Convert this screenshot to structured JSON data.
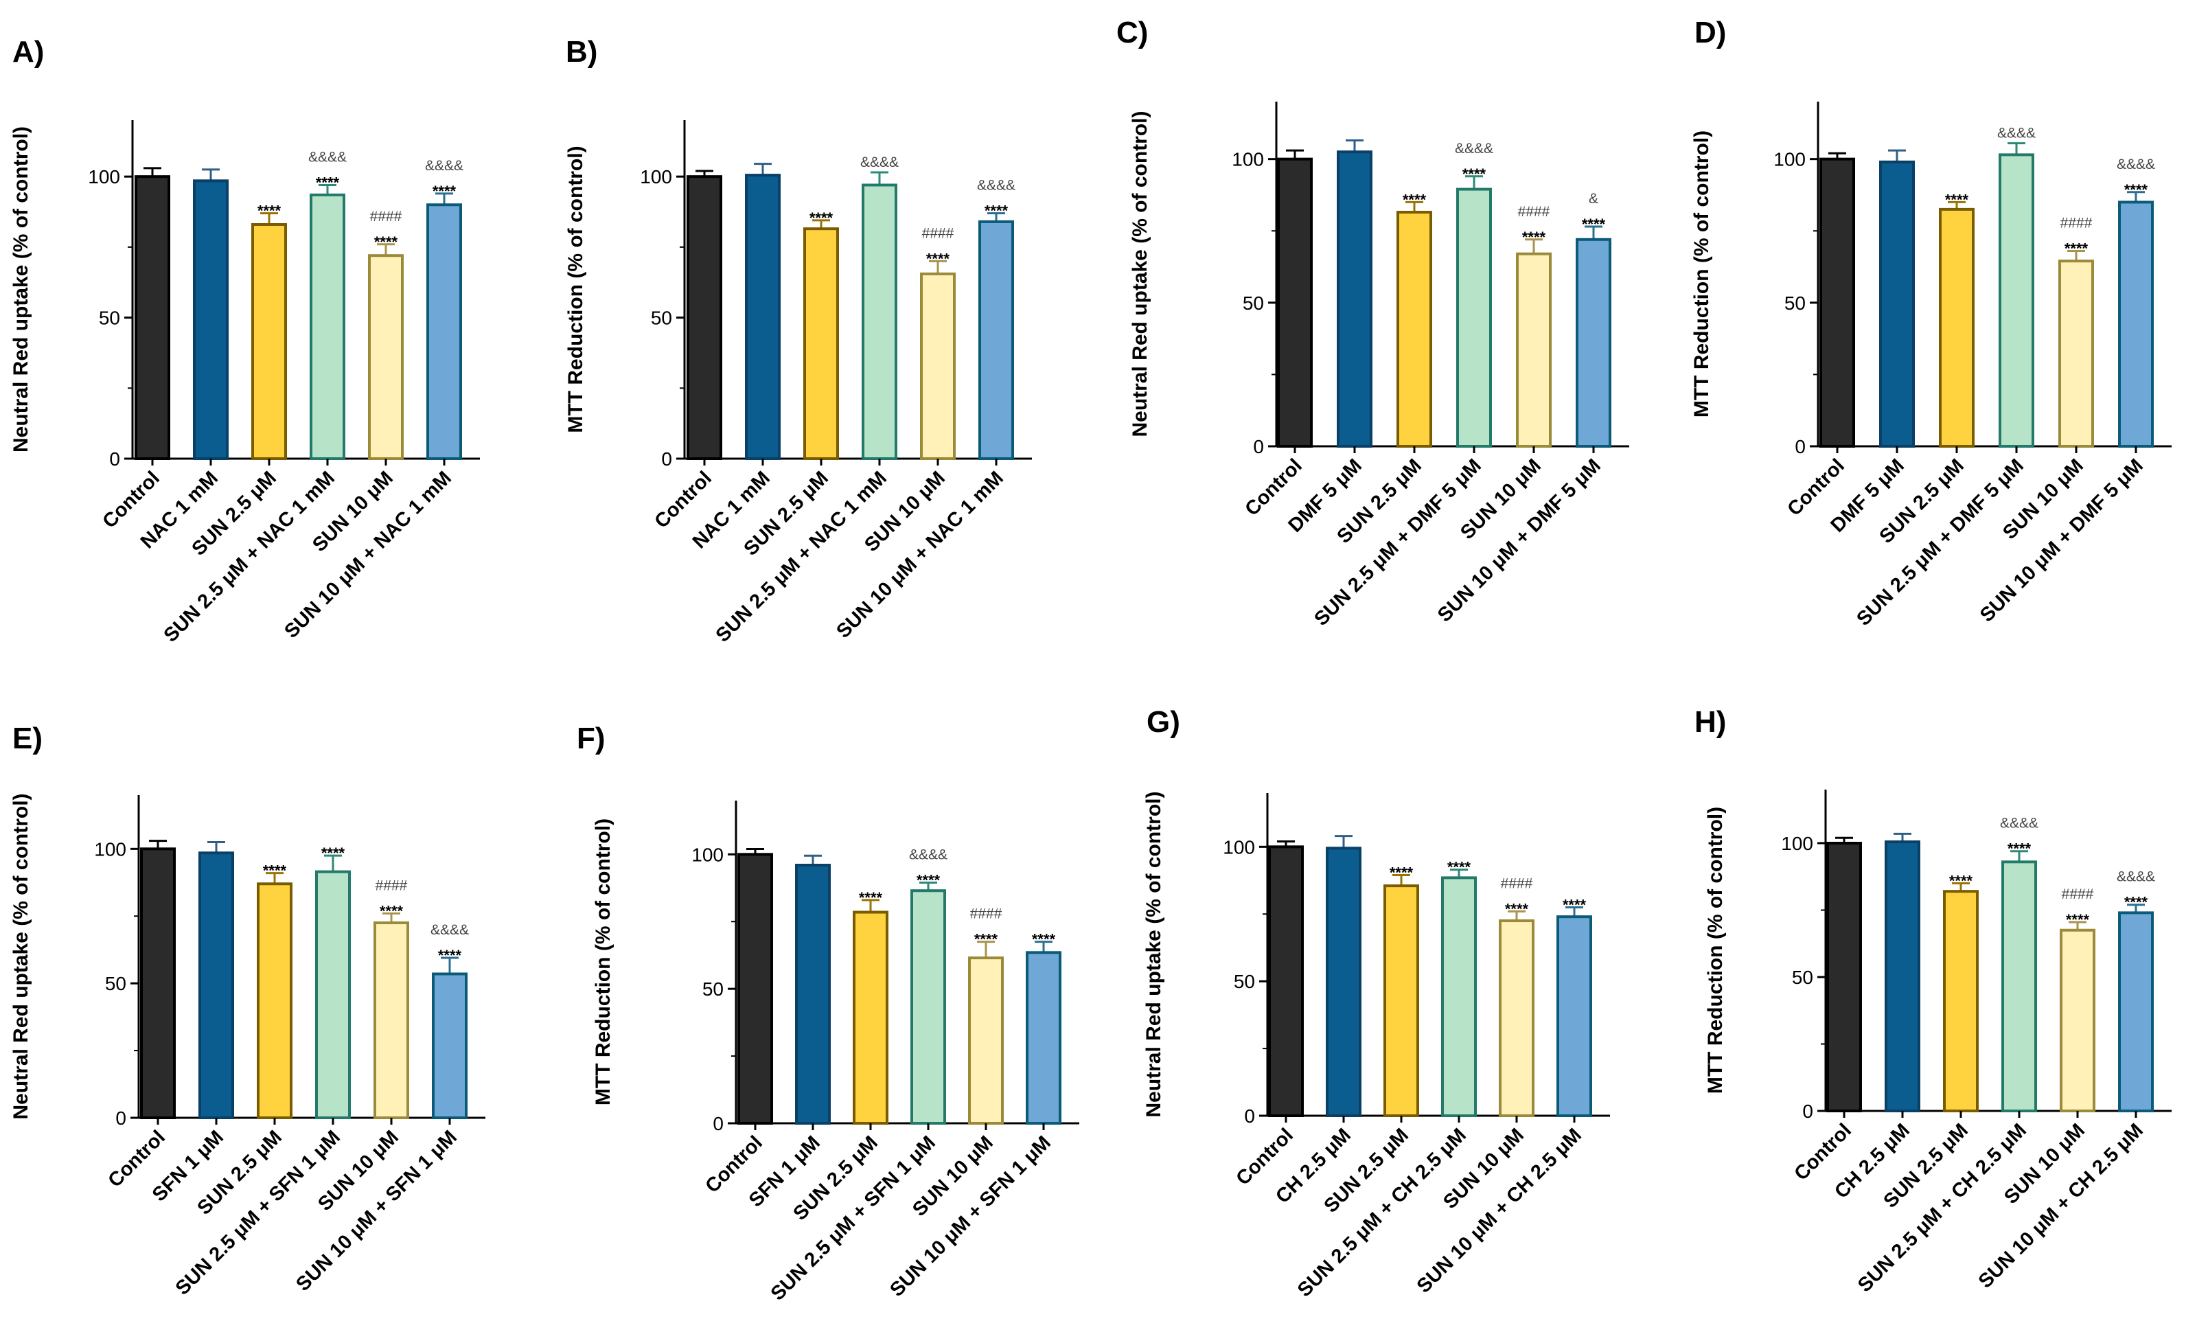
{
  "chart_data": [
    {
      "type": "bar",
      "panel": "A)",
      "title": "A)",
      "ylabel": "Neutral Red uptake (% of control)",
      "ylim": [
        0,
        120
      ],
      "yticks": [
        "0",
        "50",
        "100"
      ],
      "categories": [
        "Control",
        "NAC 1 mM",
        "SUN 2.5 μM",
        "SUN 2.5 μM + NAC 1 mM",
        "SUN 10 μM",
        "SUN 10 μM + NAC 1 mM"
      ],
      "values": [
        100,
        98.5,
        83,
        93.5,
        72,
        90
      ],
      "errors": [
        3,
        4,
        4,
        3.5,
        4,
        4
      ],
      "annotations": [
        [],
        [],
        [
          "****"
        ],
        [
          "&&&&",
          "****"
        ],
        [
          "####",
          "****"
        ],
        [
          "&&&&",
          "****"
        ]
      ]
    },
    {
      "type": "bar",
      "panel": "B)",
      "title": "B)",
      "ylabel": "MTT Reduction (% of control)",
      "ylim": [
        0,
        120
      ],
      "yticks": [
        "0",
        "50",
        "100"
      ],
      "categories": [
        "Control",
        "NAC 1 mM",
        "SUN 2.5 μM",
        "SUN 2.5 μM + NAC 1 mM",
        "SUN 10 μM",
        "SUN 10 μM + NAC 1 mM"
      ],
      "values": [
        100,
        100.5,
        81.5,
        97,
        65.5,
        84
      ],
      "errors": [
        2,
        4,
        3,
        4.5,
        4.5,
        3
      ],
      "annotations": [
        [],
        [],
        [
          "****"
        ],
        [
          "&&&&"
        ],
        [
          "####",
          "****"
        ],
        [
          "&&&&",
          "****"
        ]
      ]
    },
    {
      "type": "bar",
      "panel": "C)",
      "title": "C)",
      "ylabel": "Neutral Red uptake (% of control)",
      "ylim": [
        0,
        120
      ],
      "yticks": [
        "0",
        "50",
        "100"
      ],
      "categories": [
        "Control",
        "DMF 5 μM",
        "SUN 2.5 μM",
        "SUN 2.5 μM + DMF 5 μM",
        "SUN 10 μM",
        "SUN 10 μM + DMF 5 μM"
      ],
      "values": [
        100,
        102.5,
        81.5,
        89.5,
        67,
        72
      ],
      "errors": [
        3,
        4,
        3.5,
        4.5,
        5,
        4.5
      ],
      "annotations": [
        [],
        [],
        [
          "****"
        ],
        [
          "&&&&",
          "****"
        ],
        [
          "####",
          "****"
        ],
        [
          "&",
          "****"
        ]
      ]
    },
    {
      "type": "bar",
      "panel": "D)",
      "title": "D)",
      "ylabel": "MTT Reduction (% of control)",
      "ylim": [
        0,
        120
      ],
      "yticks": [
        "0",
        "50",
        "100"
      ],
      "categories": [
        "Control",
        "DMF 5 μM",
        "SUN 2.5 μM",
        "SUN 2.5 μM + DMF 5 μM",
        "SUN 10 μM",
        "SUN 10 μM + DMF 5 μM"
      ],
      "values": [
        100,
        99,
        82.5,
        101.5,
        64.5,
        85
      ],
      "errors": [
        2,
        4,
        2.5,
        4,
        3.5,
        3.5
      ],
      "annotations": [
        [],
        [],
        [
          "****"
        ],
        [
          "&&&&"
        ],
        [
          "####",
          "****"
        ],
        [
          "&&&&",
          "****"
        ]
      ]
    },
    {
      "type": "bar",
      "panel": "E)",
      "title": "E)",
      "ylabel": "Neutral Red uptake (% of control)",
      "ylim": [
        0,
        120
      ],
      "yticks": [
        "0",
        "50",
        "100"
      ],
      "categories": [
        "Control",
        "SFN 1 μM",
        "SUN 2.5 μM",
        "SUN 2.5 μM + SFN 1 μM",
        "SUN 10 μM",
        "SUN 10 μM + SFN 1 μM"
      ],
      "values": [
        100,
        98.5,
        87,
        91.5,
        72.5,
        53.5
      ],
      "errors": [
        3,
        4,
        4,
        6,
        3.5,
        6
      ],
      "annotations": [
        [],
        [],
        [
          "****"
        ],
        [
          "****"
        ],
        [
          "####",
          "****"
        ],
        [
          "&&&&",
          "****"
        ]
      ]
    },
    {
      "type": "bar",
      "panel": "F)",
      "title": "F)",
      "ylabel": "MTT Reduction (% of control)",
      "ylim": [
        0,
        120
      ],
      "yticks": [
        "0",
        "50",
        "100"
      ],
      "categories": [
        "Control",
        "SFN 1 μM",
        "SUN 2.5 μM",
        "SUN 2.5 μM + SFN 1 μM",
        "SUN 10 μM",
        "SUN 10 μM + SFN 1 μM"
      ],
      "values": [
        100,
        96,
        78.5,
        86.5,
        61.5,
        63.5
      ],
      "errors": [
        2,
        3.5,
        4.5,
        3,
        6,
        4
      ],
      "annotations": [
        [],
        [],
        [
          "****"
        ],
        [
          "&&&&",
          "****"
        ],
        [
          "####",
          "****"
        ],
        [
          "****"
        ]
      ]
    },
    {
      "type": "bar",
      "panel": "G)",
      "title": "G)",
      "ylabel": "Neutral Red uptake (% of control)",
      "ylim": [
        0,
        120
      ],
      "yticks": [
        "0",
        "50",
        "100"
      ],
      "categories": [
        "Control",
        "CH 2.5 μM",
        "SUN 2.5 μM",
        "SUN 2.5 μM + CH 2.5 μM",
        "SUN 10 μM",
        "SUN 10 μM + CH 2.5 μM"
      ],
      "values": [
        100,
        99.5,
        85.5,
        88.5,
        72.5,
        74
      ],
      "errors": [
        2,
        4.5,
        4,
        3,
        3.5,
        3.5
      ],
      "annotations": [
        [],
        [],
        [
          "****"
        ],
        [
          "****"
        ],
        [
          "####",
          "****"
        ],
        [
          "****"
        ]
      ]
    },
    {
      "type": "bar",
      "panel": "H)",
      "title": "H)",
      "ylabel": "MTT Reduction (% of control)",
      "ylim": [
        0,
        120
      ],
      "yticks": [
        "0",
        "50",
        "100"
      ],
      "categories": [
        "Control",
        "CH 2.5 μM",
        "SUN 2.5 μM",
        "SUN 2.5 μM + CH 2.5 μM",
        "SUN 10 μM",
        "SUN 10 μM + CH 2.5 μM"
      ],
      "values": [
        100,
        100.5,
        82,
        93,
        67.5,
        74
      ],
      "errors": [
        2,
        3,
        3,
        4,
        3,
        3
      ],
      "annotations": [
        [],
        [],
        [
          "****"
        ],
        [
          "&&&&",
          "****"
        ],
        [
          "####",
          "****"
        ],
        [
          "&&&&",
          "****"
        ]
      ]
    }
  ],
  "colors": {
    "fills": [
      "#2b2b2b",
      "#0b5c8f",
      "#ffd23f",
      "#b7e3c8",
      "#fff1b8",
      "#6fa8d6"
    ],
    "strokes": [
      "#000000",
      "#0a3f66",
      "#7a5c00",
      "#237a6a",
      "#9a8a3a",
      "#0a5a78"
    ],
    "errors": [
      "#000000",
      "#2f5f86",
      "#9a7300",
      "#2b8a77",
      "#a8944a",
      "#2a6f92"
    ],
    "axis": "#000000"
  }
}
